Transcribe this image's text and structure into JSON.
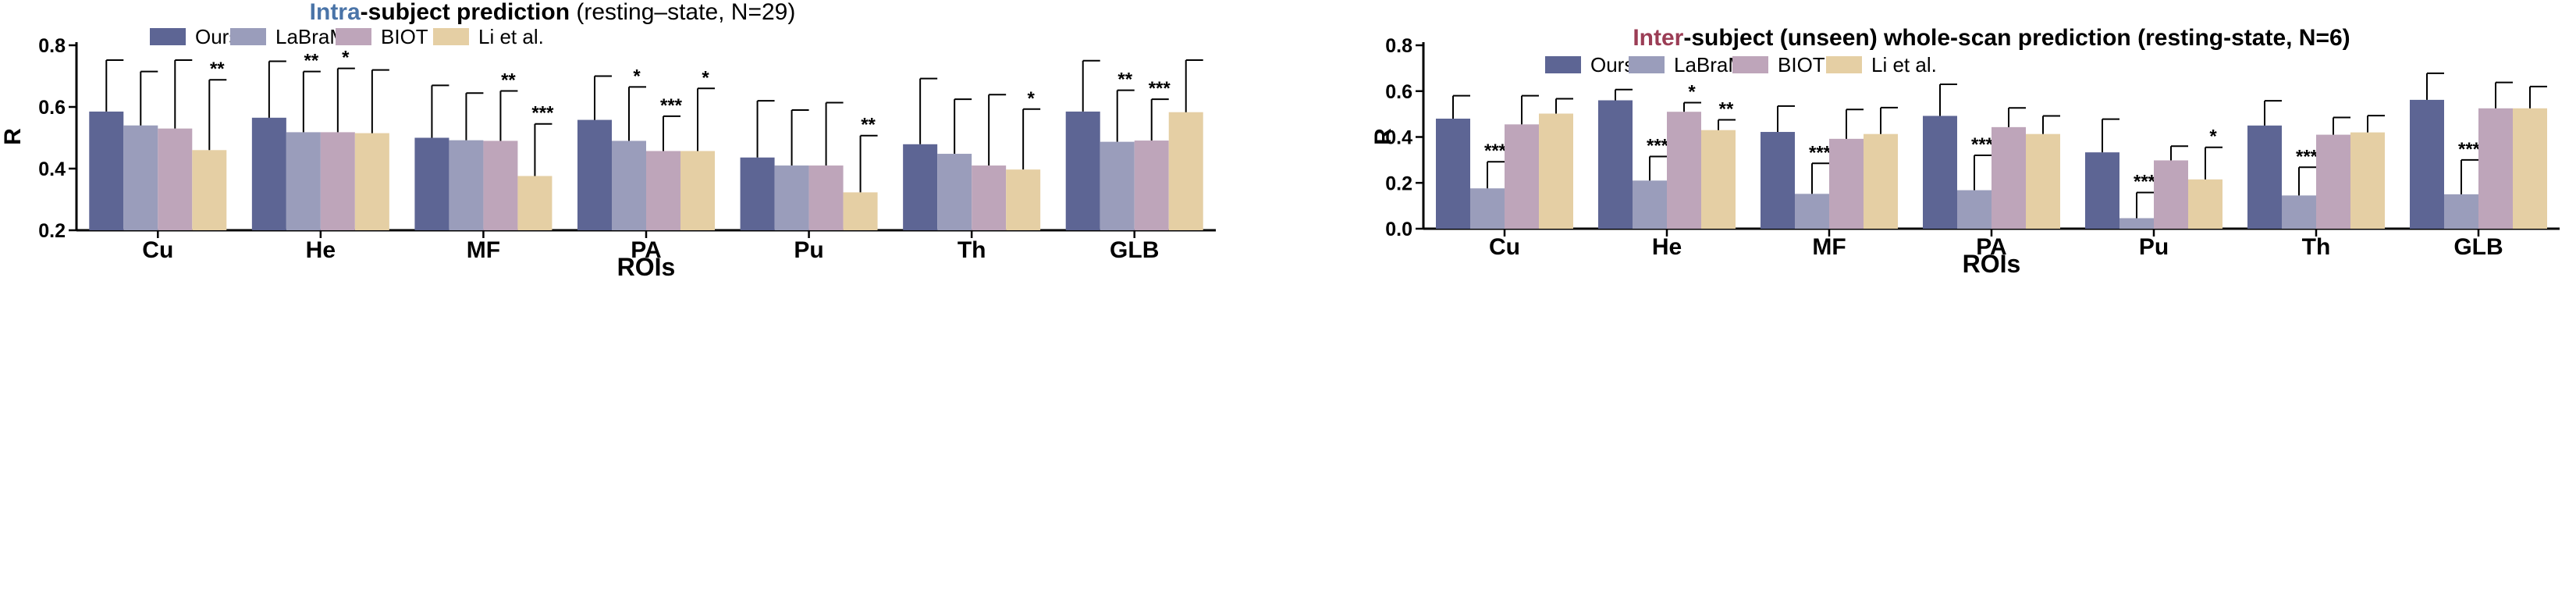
{
  "chart_data": [
    {
      "type": "bar",
      "title": {
        "accent": "Intra",
        "rest": "-subject prediction",
        "paren": "(resting–state, N=29)"
      },
      "accent_color": "#4a74a8",
      "xlabel": "ROIs",
      "ylabel": "R",
      "ylim": [
        0.2,
        0.8
      ],
      "yticks": [
        "0.2",
        "0.4",
        "0.6",
        "0.8"
      ],
      "categories": [
        "Cu",
        "He",
        "MF",
        "PA",
        "Pu",
        "Th",
        "GLB"
      ],
      "series": [
        {
          "name": "Ours",
          "color": "#5d6594",
          "values": [
            0.585,
            0.565,
            0.5,
            0.558,
            0.436,
            0.479,
            0.585
          ],
          "err": [
            0.752,
            0.748,
            0.67,
            0.7,
            0.62,
            0.692,
            0.75
          ],
          "sig": [
            "",
            "",
            "",
            "",
            "",
            "",
            ""
          ]
        },
        {
          "name": "LaBraM",
          "color": "#9a9dbb",
          "values": [
            0.54,
            0.518,
            0.492,
            0.49,
            0.41,
            0.448,
            0.487
          ],
          "err": [
            0.715,
            0.715,
            0.645,
            0.665,
            0.59,
            0.625,
            0.654
          ],
          "sig": [
            "",
            "**",
            "",
            "*",
            "",
            "",
            "**"
          ]
        },
        {
          "name": "BIOT",
          "color": "#bea5ba",
          "values": [
            0.53,
            0.518,
            0.49,
            0.457,
            0.41,
            0.41,
            0.491
          ],
          "err": [
            0.752,
            0.725,
            0.652,
            0.57,
            0.614,
            0.64,
            0.625
          ],
          "sig": [
            "",
            "*",
            "**",
            "***",
            "",
            "",
            "***"
          ]
        },
        {
          "name": "Li et al.",
          "color": "#e5cfa4",
          "values": [
            0.46,
            0.515,
            0.376,
            0.457,
            0.323,
            0.397,
            0.583
          ],
          "err": [
            0.688,
            0.72,
            0.545,
            0.66,
            0.507,
            0.593,
            0.752
          ],
          "sig": [
            "**",
            "",
            "***",
            "*",
            "**",
            "*",
            ""
          ]
        }
      ]
    },
    {
      "type": "bar",
      "title": {
        "accent": "Inter",
        "rest": "-subject (unseen) whole-scan prediction (resting-state, N=6)",
        "paren": ""
      },
      "accent_color": "#9b3d55",
      "xlabel": "ROIs",
      "ylabel": "R",
      "ylim": [
        0.0,
        0.8
      ],
      "yticks": [
        "0.0",
        "0.2",
        "0.4",
        "0.6",
        "0.8"
      ],
      "categories": [
        "Cu",
        "He",
        "MF",
        "PA",
        "Pu",
        "Th",
        "GLB"
      ],
      "series": [
        {
          "name": "Ours",
          "color": "#5d6594",
          "values": [
            0.48,
            0.56,
            0.422,
            0.492,
            0.333,
            0.45,
            0.562
          ],
          "err": [
            0.58,
            0.607,
            0.535,
            0.63,
            0.478,
            0.558,
            0.678
          ],
          "sig": [
            "",
            "",
            "",
            "",
            "",
            "",
            ""
          ]
        },
        {
          "name": "LaBraM",
          "color": "#9a9dbb",
          "values": [
            0.176,
            0.21,
            0.152,
            0.168,
            0.046,
            0.145,
            0.15
          ],
          "err": [
            0.292,
            0.315,
            0.285,
            0.32,
            0.158,
            0.268,
            0.3
          ],
          "sig": [
            "***",
            "***",
            "***",
            "***",
            "***",
            "***",
            "***"
          ]
        },
        {
          "name": "BIOT",
          "color": "#bea5ba",
          "values": [
            0.455,
            0.51,
            0.392,
            0.443,
            0.298,
            0.41,
            0.525
          ],
          "err": [
            0.58,
            0.55,
            0.52,
            0.527,
            0.36,
            0.485,
            0.638
          ],
          "sig": [
            "",
            "*",
            "",
            "",
            "",
            "",
            ""
          ]
        },
        {
          "name": "Li et al.",
          "color": "#e5cfa4",
          "values": [
            0.502,
            0.43,
            0.413,
            0.413,
            0.215,
            0.42,
            0.525
          ],
          "err": [
            0.567,
            0.475,
            0.528,
            0.492,
            0.355,
            0.493,
            0.62
          ],
          "sig": [
            "",
            "**",
            "",
            "",
            "*",
            "",
            ""
          ]
        }
      ]
    }
  ]
}
